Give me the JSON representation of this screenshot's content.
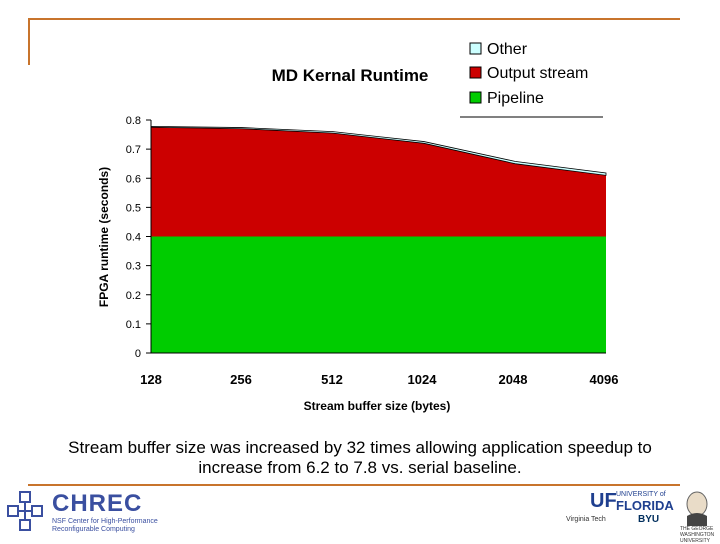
{
  "chart_data": {
    "type": "area",
    "stacked": true,
    "title": "MD Kernal Runtime",
    "xlabel": "Stream buffer size (bytes)",
    "ylabel": "FPGA runtime (seconds)",
    "categories": [
      "128",
      "256",
      "512",
      "1024",
      "2048",
      "4096"
    ],
    "y_ticks": [
      "0",
      "0.1",
      "0.2",
      "0.3",
      "0.4",
      "0.5",
      "0.6",
      "0.7",
      "0.8"
    ],
    "ylim": [
      0,
      0.8
    ],
    "grid": false,
    "legend_position": "top-right",
    "series": [
      {
        "name": "Pipeline",
        "color": "#00cc00",
        "values": [
          0.4,
          0.4,
          0.4,
          0.4,
          0.4,
          0.4
        ]
      },
      {
        "name": "Output stream",
        "color": "#cc0000",
        "values": [
          0.375,
          0.37,
          0.355,
          0.32,
          0.25,
          0.21
        ]
      },
      {
        "name": "Other",
        "color": "#ccffff",
        "values": [
          0.003,
          0.004,
          0.005,
          0.006,
          0.008,
          0.008
        ]
      }
    ],
    "legend_order": [
      "Other",
      "Output stream",
      "Pipeline"
    ]
  },
  "caption": "Stream buffer size was increased by 32 times allowing application speedup to increase from 6.2 to 7.8 vs. serial baseline.",
  "logos": {
    "chrec_name": "CHREC",
    "chrec_tagline": "NSF Center for High-Performance Reconfigurable Computing",
    "uf_mark": "UF",
    "uf_university": "UNIVERSITY of",
    "uf_florida": "FLORIDA",
    "virginia_tech": "Virginia Tech",
    "byu": "BYU",
    "gw": "THE GEORGE WASHINGTON UNIVERSITY"
  }
}
